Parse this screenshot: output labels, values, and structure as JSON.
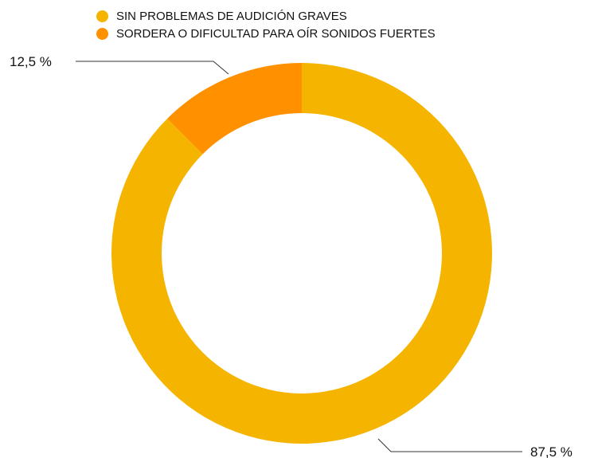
{
  "chart_data": {
    "type": "pie",
    "donut": true,
    "legend_position": "top-left",
    "categories": [
      "SIN PROBLEMAS DE AUDICIÓN GRAVES",
      "SORDERA O DIFICULTAD PARA OÍR SONIDOS FUERTES"
    ],
    "values": [
      87.5,
      12.5
    ],
    "data_labels": [
      "87,5 %",
      "12,5 %"
    ],
    "colors": [
      "#F4B400",
      "#FF9100"
    ]
  }
}
